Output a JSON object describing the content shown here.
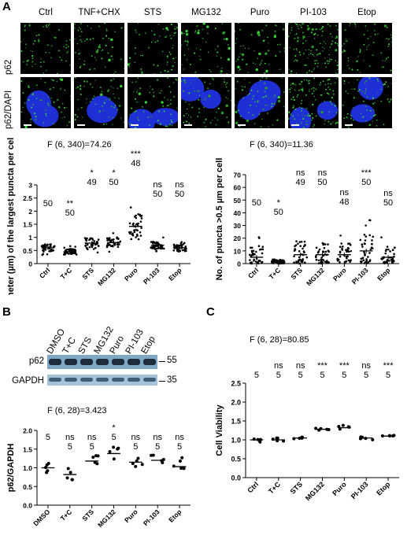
{
  "panelA": {
    "letter": "A",
    "columns": [
      "Ctrl",
      "TNF+CHX",
      "STS",
      "MG132",
      "Puro",
      "PI-103",
      "Etop"
    ],
    "rows": [
      "p62",
      "p62/DAPI"
    ]
  },
  "panelB": {
    "letter": "B",
    "blot_lanes": [
      "DMSO",
      "T+C",
      "STS",
      "MG132",
      "Puro",
      "PI-103",
      "Etop"
    ],
    "blot_rows": [
      "p62",
      "GAPDH"
    ],
    "markers": [
      "55",
      "35"
    ]
  },
  "panelC": {
    "letter": "C"
  },
  "chart_data": [
    {
      "id": "A-left",
      "type": "scatter",
      "title": "F (6, 340)=74.26",
      "ylabel": "Diameter (µm) of the largest puncta per cell",
      "categories": [
        "Ctrl",
        "T+C",
        "STS",
        "MG132",
        "Puro",
        "PI-103",
        "Etop"
      ],
      "ylim": [
        0,
        3
      ],
      "yticks": [
        0,
        0.5,
        1,
        1.5,
        2,
        2.5,
        3
      ],
      "means": [
        0.6,
        0.45,
        0.78,
        0.8,
        1.42,
        0.7,
        0.6
      ],
      "spread": [
        0.3,
        0.22,
        0.4,
        0.38,
        0.95,
        0.3,
        0.28
      ],
      "n": [
        "50",
        "50",
        "49",
        "50",
        "48",
        "50",
        "50"
      ],
      "sig": [
        "",
        "**",
        "*",
        "*",
        "***",
        "ns",
        "ns"
      ]
    },
    {
      "id": "A-right",
      "type": "scatter",
      "title": "F (6, 340)=11.36",
      "ylabel": "No. of puncta >0.5 µm per cell",
      "categories": [
        "Ctrl",
        "T+C",
        "STS",
        "MG132",
        "Puro",
        "PI-103",
        "Etop"
      ],
      "ylim": [
        0,
        70
      ],
      "yticks": [
        0,
        10,
        20,
        30,
        40,
        50,
        60,
        70
      ],
      "means": [
        5,
        1,
        7,
        7,
        7,
        10,
        5
      ],
      "spread": [
        18,
        4,
        22,
        20,
        18,
        28,
        16
      ],
      "n": [
        "50",
        "50",
        "49",
        "50",
        "48",
        "50",
        "50"
      ],
      "sig": [
        "",
        "*",
        "ns",
        "ns",
        "ns",
        "***",
        "ns"
      ]
    },
    {
      "id": "B-quant",
      "type": "scatter",
      "title": "F (6, 28)=3.423",
      "ylabel": "p62/GAPDH",
      "categories": [
        "DMSO",
        "T+C",
        "STS",
        "MG132",
        "Puro",
        "PI-103",
        "Etop"
      ],
      "ylim": [
        0,
        2
      ],
      "yticks": [
        0.0,
        0.5,
        1.0,
        1.5,
        2.0
      ],
      "means": [
        1.0,
        0.82,
        1.18,
        1.38,
        1.15,
        1.2,
        1.03
      ],
      "spread": [
        0.3,
        0.4,
        0.3,
        0.35,
        0.3,
        0.3,
        0.45
      ],
      "n": [
        "5",
        "5",
        "5",
        "5",
        "5",
        "5",
        "5"
      ],
      "sig": [
        "",
        "ns",
        "ns",
        "*",
        "ns",
        "ns",
        "ns"
      ]
    },
    {
      "id": "C-viability",
      "type": "scatter",
      "title": "F (6, 28)=80.85",
      "ylabel": "Cell Viability",
      "categories": [
        "Ctrl",
        "T+C",
        "STS",
        "MG132",
        "Puro",
        "PI-103",
        "Etop"
      ],
      "ylim": [
        0,
        2.5
      ],
      "yticks": [
        0.0,
        0.5,
        1.0,
        1.5,
        2.0,
        2.5
      ],
      "means": [
        1.0,
        1.0,
        1.05,
        1.28,
        1.32,
        1.05,
        1.1
      ],
      "spread": [
        0.08,
        0.1,
        0.06,
        0.05,
        0.07,
        0.05,
        0.03
      ],
      "n": [
        "5",
        "5",
        "5",
        "5",
        "5",
        "5",
        "5"
      ],
      "sig": [
        "",
        "ns",
        "ns",
        "***",
        "***",
        "ns",
        "***"
      ]
    }
  ]
}
